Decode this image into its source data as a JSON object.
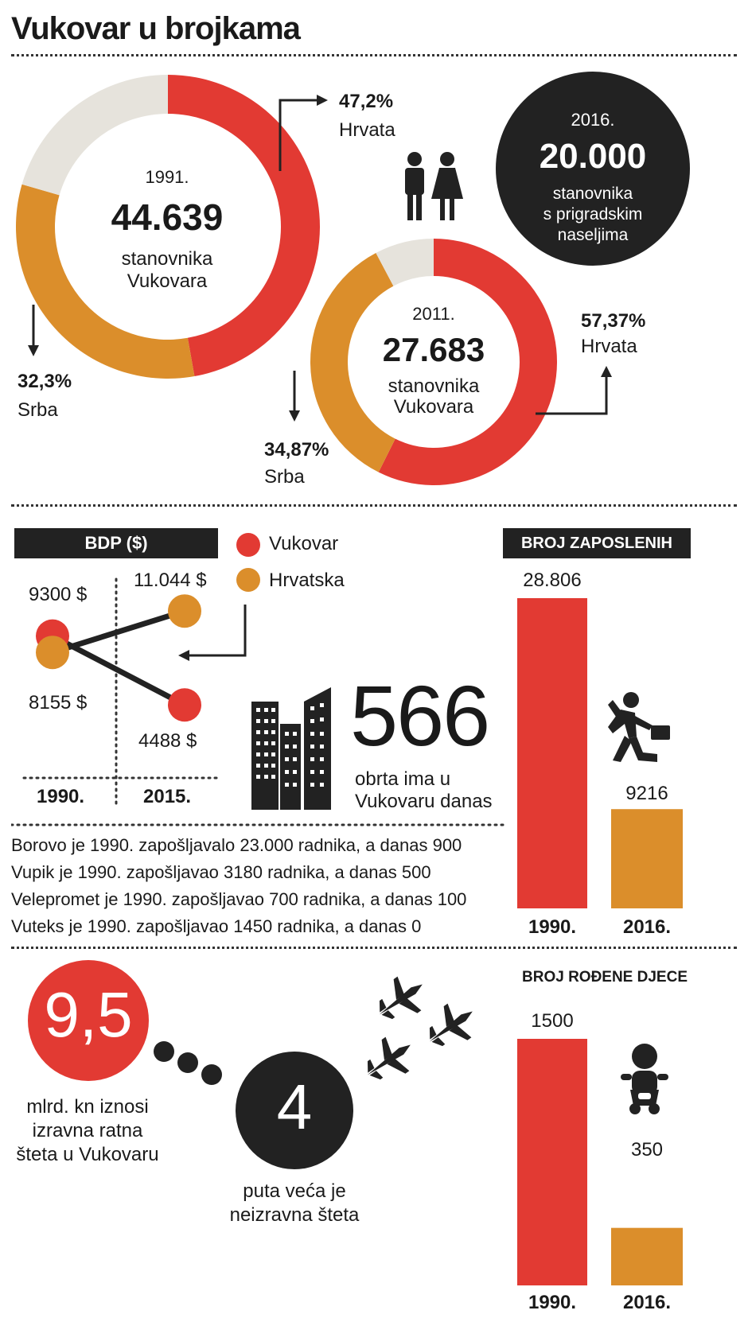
{
  "title": "Vukovar u brojkama",
  "colors": {
    "croats": "#e23a33",
    "serbs": "#db8e2b",
    "other": "#e6e3dc",
    "dark": "#222222"
  },
  "chart_data": [
    {
      "type": "pie",
      "year": "1991.",
      "total": "44.639",
      "caption1": "stanovnika",
      "caption2": "Vukovara",
      "slices": [
        {
          "name": "Hrvata",
          "value": 47.2,
          "label": "47,2%",
          "color": "#e23a33"
        },
        {
          "name": "Srba",
          "value": 32.3,
          "label": "32,3%",
          "color": "#db8e2b"
        },
        {
          "name": "",
          "value": 20.5,
          "label": "",
          "color": "#e6e3dc"
        }
      ]
    },
    {
      "type": "pie",
      "year": "2011.",
      "total": "27.683",
      "caption1": "stanovnika",
      "caption2": "Vukovara",
      "slices": [
        {
          "name": "Hrvata",
          "value": 57.37,
          "label": "57,37%",
          "color": "#e23a33"
        },
        {
          "name": "Srba",
          "value": 34.87,
          "label": "34,87%",
          "color": "#db8e2b"
        },
        {
          "name": "",
          "value": 7.76,
          "label": "",
          "color": "#e6e3dc"
        }
      ]
    },
    {
      "type": "line",
      "title": "BDP ($)",
      "categories": [
        "1990.",
        "2015."
      ],
      "series": [
        {
          "name": "Vukovar",
          "values": [
            9300,
            4488
          ],
          "labels": [
            "9300 $",
            "4488 $"
          ],
          "color": "#e23a33"
        },
        {
          "name": "Hrvatska",
          "values": [
            8155,
            11044
          ],
          "labels": [
            "8155 $",
            "11.044 $"
          ],
          "color": "#db8e2b"
        }
      ]
    },
    {
      "type": "bar",
      "title": "BROJ ZAPOSLENIH",
      "categories": [
        "1990.",
        "2016."
      ],
      "values": [
        28806,
        9216
      ],
      "labels": [
        "28.806",
        "9216"
      ],
      "colors": [
        "#e23a33",
        "#db8e2b"
      ]
    },
    {
      "type": "bar",
      "title": "BROJ ROĐENE DJECE",
      "categories": [
        "1990.",
        "2016."
      ],
      "values": [
        1500,
        350
      ],
      "labels": [
        "1500",
        "350"
      ],
      "colors": [
        "#e23a33",
        "#db8e2b"
      ]
    }
  ],
  "population2016": {
    "year": "2016.",
    "value": "20.000",
    "line1": "stanovnika",
    "line2": "s prigradskim",
    "line3": "naseljima"
  },
  "crafts": {
    "value": "566",
    "line1": "obrta ima u",
    "line2": "Vukovaru danas"
  },
  "companies": [
    "Borovo je 1990. zapošljavalo 23.000 radnika, a danas 900",
    "Vupik je 1990. zapošljavao 3180 radnika, a danas 500",
    "Velepromet je 1990. zapošljavao 700 radnika, a danas 100",
    "Vuteks je 1990. zapošljavao 1450 radnika, a danas 0"
  ],
  "damage": {
    "value": "9,5",
    "line1": "mlrd. kn iznosi",
    "line2": "izravna ratna",
    "line3": "šteta u Vukovaru"
  },
  "indirect": {
    "value": "4",
    "line1": "puta veća je",
    "line2": "neizravna šteta"
  },
  "icons": [
    "people-icon",
    "buildings-icon",
    "running-man-icon",
    "fighter-jet-icon",
    "baby-icon"
  ]
}
